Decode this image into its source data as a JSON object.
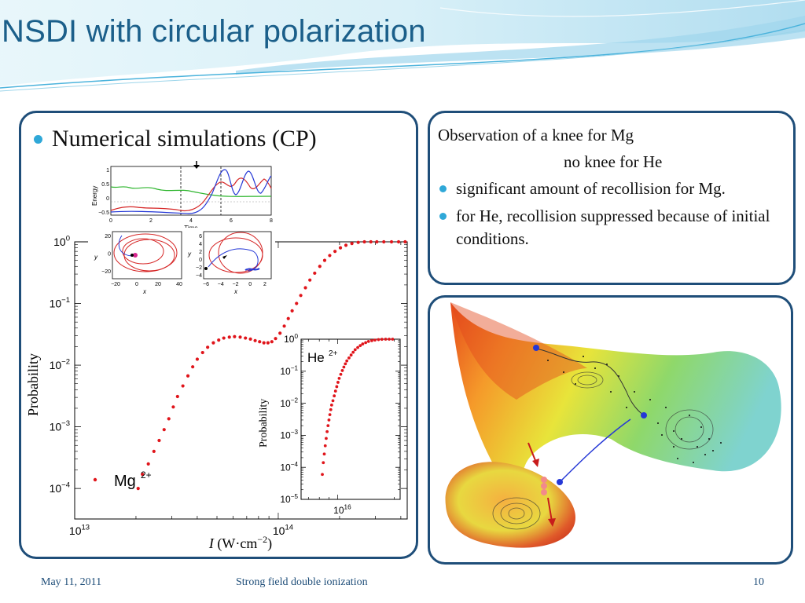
{
  "slide": {
    "title": "NSDI with circular polarization",
    "footer_date": "May 11, 2011",
    "footer_center": "Strong field double ionization",
    "page_number": "10",
    "accent_color": "#1b5f8a",
    "border_color": "#1f4e79",
    "bullet_color": "#2fa8d8"
  },
  "left_panel": {
    "bullet": "Numerical simulations (CP)"
  },
  "observation_panel": {
    "line1": "Observation of a knee for Mg",
    "line2": "no knee for He",
    "bullets": [
      "significant amount of recollision for Mg.",
      "for He, recollision suppressed because of initial conditions."
    ]
  },
  "inset_top": {
    "ylabel": "Energy",
    "xlabel": "Time",
    "yticks": [
      "1",
      "0.5",
      "0",
      "−0.5"
    ],
    "xticks": [
      "0",
      "2",
      "4",
      "6",
      "8"
    ]
  },
  "inset_traj_left": {
    "ylabel": "y",
    "xlabel": "x",
    "yticks": [
      "20",
      "0",
      "−20"
    ],
    "xticks": [
      "−20",
      "0",
      "20",
      "40"
    ]
  },
  "inset_traj_right": {
    "ylabel": "y",
    "xlabel": "x",
    "yticks": [
      "6",
      "4",
      "2",
      "0",
      "−2",
      "−4"
    ],
    "xticks": [
      "−6",
      "−4",
      "−2",
      "0",
      "2"
    ]
  },
  "chart_data": [
    {
      "type": "scatter",
      "title": "",
      "xlabel": "I (W·cm−2)",
      "ylabel": "Probability",
      "x_scale": "log",
      "y_scale": "log",
      "xlim": [
        10000000000000.0,
        430000000000000.0
      ],
      "ylim": [
        3.2e-05,
        1
      ],
      "x_tick_labels": [
        "10^13",
        "10^14"
      ],
      "y_tick_labels": [
        "10^0",
        "10^-1",
        "10^-2",
        "10^-3",
        "10^-4"
      ],
      "series": [
        {
          "name": "Mg2+",
          "color": "#e0151b",
          "points": [
            [
              20500000000000.0,
              0.0001
            ],
            [
              21500000000000.0,
              0.00017
            ],
            [
              23000000000000.0,
              0.00025
            ],
            [
              24500000000000.0,
              0.0004
            ],
            [
              26000000000000.0,
              0.0006
            ],
            [
              27500000000000.0,
              0.0009
            ],
            [
              29000000000000.0,
              0.00135
            ],
            [
              30500000000000.0,
              0.0021
            ],
            [
              32000000000000.0,
              0.0031
            ],
            [
              34000000000000.0,
              0.0046
            ],
            [
              36000000000000.0,
              0.0067
            ],
            [
              38000000000000.0,
              0.0094
            ],
            [
              40000000000000.0,
              0.0125
            ],
            [
              42500000000000.0,
              0.016
            ],
            [
              45000000000000.0,
              0.0195
            ],
            [
              48000000000000.0,
              0.023
            ],
            [
              51000000000000.0,
              0.0255
            ],
            [
              54000000000000.0,
              0.0275
            ],
            [
              57500000000000.0,
              0.0285
            ],
            [
              61000000000000.0,
              0.029
            ],
            [
              65000000000000.0,
              0.0285
            ],
            [
              69000000000000.0,
              0.0275
            ],
            [
              73000000000000.0,
              0.0265
            ],
            [
              77000000000000.0,
              0.025
            ],
            [
              81000000000000.0,
              0.024
            ],
            [
              85000000000000.0,
              0.023
            ],
            [
              89000000000000.0,
              0.023
            ],
            [
              93000000000000.0,
              0.024
            ],
            [
              97000000000000.0,
              0.027
            ],
            [
              102000000000000.0,
              0.033
            ],
            [
              107000000000000.0,
              0.043
            ],
            [
              112000000000000.0,
              0.057
            ],
            [
              117000000000000.0,
              0.076
            ],
            [
              123000000000000.0,
              0.1
            ],
            [
              129000000000000.0,
              0.135
            ],
            [
              136000000000000.0,
              0.18
            ],
            [
              143000000000000.0,
              0.24
            ],
            [
              151000000000000.0,
              0.31
            ],
            [
              160000000000000.0,
              0.4
            ],
            [
              169000000000000.0,
              0.5
            ],
            [
              179000000000000.0,
              0.6
            ],
            [
              190000000000000.0,
              0.7
            ],
            [
              202000000000000.0,
              0.8
            ],
            [
              215000000000000.0,
              0.88
            ],
            [
              230000000000000.0,
              0.94
            ],
            [
              247000000000000.0,
              0.98
            ],
            [
              265000000000000.0,
              1.0
            ],
            [
              285000000000000.0,
              1.0
            ],
            [
              305000000000000.0,
              1.0
            ],
            [
              330000000000000.0,
              1.0
            ],
            [
              360000000000000.0,
              1.0
            ],
            [
              390000000000000.0,
              1.0
            ],
            [
              420000000000000.0,
              1.0
            ]
          ]
        }
      ],
      "legend": {
        "label": "Mg",
        "sup": "2+"
      }
    },
    {
      "type": "scatter",
      "title": "",
      "xlabel": "",
      "ylabel": "Probability",
      "x_scale": "log",
      "y_scale": "log",
      "xlim": [
        6400000000000000.0,
        2.15e+16
      ],
      "ylim": [
        1e-05,
        1
      ],
      "x_tick_labels": [
        "10^16"
      ],
      "y_tick_labels": [
        "10^0",
        "10^-1",
        "10^-2",
        "10^-3",
        "10^-4",
        "10^-5"
      ],
      "series": [
        {
          "name": "He2+",
          "color": "#e0151b",
          "points": [
            [
              8300000000000000.0,
              6e-05
            ],
            [
              8400000000000000.0,
              0.00014
            ],
            [
              8500000000000000.0,
              0.00026
            ],
            [
              8600000000000000.0,
              0.00047
            ],
            [
              8700000000000000.0,
              0.0008
            ],
            [
              8800000000000000.0,
              0.0013
            ],
            [
              8900000000000000.0,
              0.002
            ],
            [
              9000000000000000.0,
              0.003
            ],
            [
              9100000000000000.0,
              0.0044
            ],
            [
              9200000000000000.0,
              0.0063
            ],
            [
              9300000000000000.0,
              0.0088
            ],
            [
              9450000000000000.0,
              0.012
            ],
            [
              9600000000000000.0,
              0.017
            ],
            [
              9750000000000000.0,
              0.024
            ],
            [
              9900000000000000.0,
              0.033
            ],
            [
              1.005e+16,
              0.045
            ],
            [
              1.02e+16,
              0.06
            ],
            [
              1.04e+16,
              0.08
            ],
            [
              1.06e+16,
              0.105
            ],
            [
              1.08e+16,
              0.135
            ],
            [
              1.1e+16,
              0.17
            ],
            [
              1.12e+16,
              0.21
            ],
            [
              1.15e+16,
              0.26
            ],
            [
              1.18e+16,
              0.32
            ],
            [
              1.21e+16,
              0.39
            ],
            [
              1.24e+16,
              0.47
            ],
            [
              1.28e+16,
              0.55
            ],
            [
              1.32e+16,
              0.63
            ],
            [
              1.36e+16,
              0.71
            ],
            [
              1.41e+16,
              0.78
            ],
            [
              1.46e+16,
              0.85
            ],
            [
              1.52e+16,
              0.9
            ],
            [
              1.58e+16,
              0.94
            ],
            [
              1.65e+16,
              0.97
            ],
            [
              1.72e+16,
              0.99
            ],
            [
              1.8e+16,
              1.0
            ],
            [
              1.88e+16,
              1.0
            ],
            [
              1.96e+16,
              1.0
            ]
          ]
        }
      ],
      "legend": {
        "label": "He",
        "sup": "2+"
      }
    }
  ]
}
